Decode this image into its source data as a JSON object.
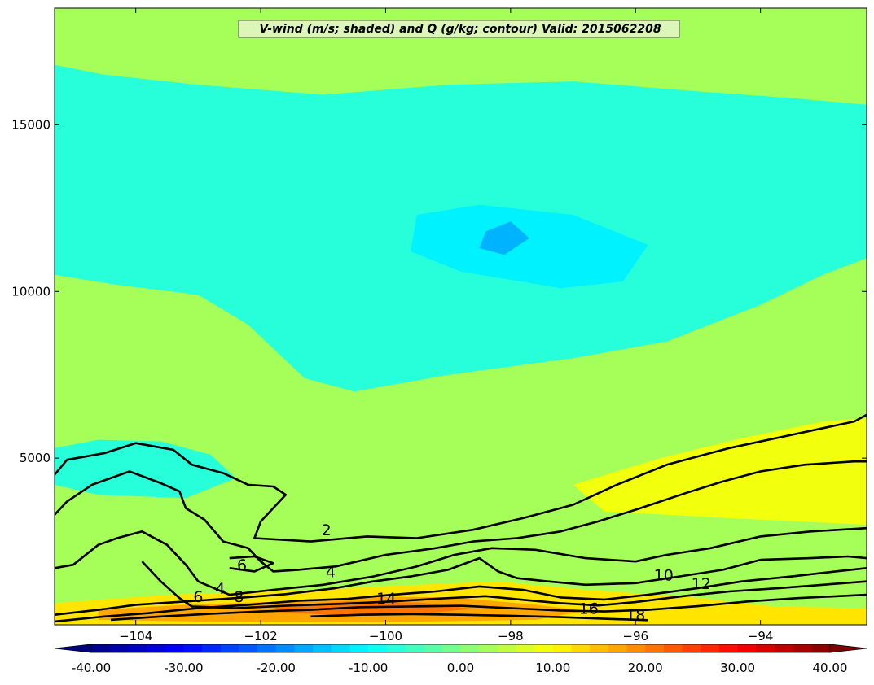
{
  "chart_data": {
    "type": "heatmap",
    "title": "V-wind (m/s; shaded) and Q (g/kg; contour) Valid: 2015062208",
    "xlabel": "",
    "ylabel": "",
    "xlim": [
      -105.3,
      -92.3
    ],
    "ylim": [
      0,
      18500
    ],
    "x_ticks": [
      -104,
      -102,
      -100,
      -98,
      -96,
      -94
    ],
    "x_tick_labels": [
      "−104",
      "−102",
      "−100",
      "−98",
      "−96",
      "−94"
    ],
    "y_ticks": [
      5000,
      10000,
      15000
    ],
    "y_tick_labels": [
      "5000",
      "10000",
      "15000"
    ],
    "colorbar": {
      "range": [
        -40,
        40
      ],
      "ticks": [
        -40,
        -30,
        -20,
        -10,
        0,
        10,
        20,
        30,
        40
      ],
      "tick_labels": [
        "-40.00",
        "-30.00",
        "-20.00",
        "-10.00",
        "0.00",
        "10.00",
        "20.00",
        "30.00",
        "40.00"
      ],
      "colormap": "jet",
      "extend": "both"
    },
    "contour_levels": [
      2,
      4,
      6,
      8,
      10,
      12,
      14,
      16,
      18
    ],
    "contour_labels": [
      {
        "text": "2",
        "x": -100.95,
        "y": 2850
      },
      {
        "text": "4",
        "x": -100.88,
        "y": 1600
      },
      {
        "text": "6",
        "x": -102.3,
        "y": 1800
      },
      {
        "text": "4",
        "x": -102.65,
        "y": 1100
      },
      {
        "text": "6",
        "x": -103.0,
        "y": 850
      },
      {
        "text": "8",
        "x": -102.35,
        "y": 850
      },
      {
        "text": "14",
        "x": -99.99,
        "y": 800
      },
      {
        "text": "10",
        "x": -95.55,
        "y": 1500
      },
      {
        "text": "12",
        "x": -94.95,
        "y": 1250
      },
      {
        "text": "16",
        "x": -96.75,
        "y": 500
      },
      {
        "text": "18",
        "x": -96.0,
        "y": 300
      }
    ],
    "shaded_field": {
      "background_value": 3,
      "regions": [
        {
          "value": -7,
          "points": [
            [
              -105.3,
              16800
            ],
            [
              -104.5,
              16500
            ],
            [
              -103,
              16200
            ],
            [
              -101,
              15900
            ],
            [
              -99,
              16200
            ],
            [
              -97,
              16300
            ],
            [
              -95,
              16000
            ],
            [
              -93.5,
              15800
            ],
            [
              -92.3,
              15600
            ],
            [
              -92.3,
              11000
            ],
            [
              -93,
              10500
            ],
            [
              -94,
              9600
            ],
            [
              -95.5,
              8500
            ],
            [
              -97,
              8000
            ],
            [
              -99,
              7500
            ],
            [
              -100.5,
              7000
            ],
            [
              -101.3,
              7400
            ],
            [
              -102.2,
              9000
            ],
            [
              -103,
              9900
            ],
            [
              -104.3,
              10200
            ],
            [
              -105.3,
              10500
            ]
          ]
        },
        {
          "value": -11,
          "points": [
            [
              -99.5,
              12300
            ],
            [
              -98.5,
              12600
            ],
            [
              -97,
              12300
            ],
            [
              -95.8,
              11400
            ],
            [
              -96.2,
              10300
            ],
            [
              -97.2,
              10100
            ],
            [
              -98.8,
              10600
            ],
            [
              -99.6,
              11200
            ]
          ]
        },
        {
          "value": -16,
          "points": [
            [
              -98.4,
              11800
            ],
            [
              -98.0,
              12100
            ],
            [
              -97.7,
              11600
            ],
            [
              -98.1,
              11100
            ],
            [
              -98.5,
              11300
            ]
          ]
        },
        {
          "value": -7,
          "points": [
            [
              -105.3,
              5300
            ],
            [
              -104.6,
              5550
            ],
            [
              -103.6,
              5500
            ],
            [
              -102.8,
              5100
            ],
            [
              -102.4,
              4400
            ],
            [
              -103.2,
              3800
            ],
            [
              -104.6,
              3900
            ],
            [
              -105.3,
              4200
            ]
          ]
        },
        {
          "value": 9,
          "points": [
            [
              -97,
              4200
            ],
            [
              -95.6,
              5000
            ],
            [
              -94.3,
              5600
            ],
            [
              -93,
              6100
            ],
            [
              -92.3,
              6200
            ],
            [
              -92.3,
              3000
            ],
            [
              -94.5,
              3200
            ],
            [
              -96.5,
              3400
            ]
          ]
        },
        {
          "value": 12,
          "points": [
            [
              -105.3,
              650
            ],
            [
              -103.5,
              900
            ],
            [
              -101.2,
              1050
            ],
            [
              -99.5,
              1200
            ],
            [
              -98.2,
              1300
            ],
            [
              -96.8,
              1050
            ],
            [
              -95.2,
              850
            ],
            [
              -93.8,
              550
            ],
            [
              -92.3,
              500
            ],
            [
              -92.3,
              0
            ],
            [
              -105.3,
              0
            ]
          ]
        },
        {
          "value": 17,
          "points": [
            [
              -104.6,
              450
            ],
            [
              -103.2,
              600
            ],
            [
              -101.6,
              700
            ],
            [
              -100.2,
              850
            ],
            [
              -98.9,
              820
            ],
            [
              -97.6,
              600
            ],
            [
              -96.8,
              420
            ],
            [
              -97.6,
              150
            ],
            [
              -100,
              80
            ],
            [
              -103,
              100
            ],
            [
              -104.6,
              150
            ]
          ]
        },
        {
          "value": 21,
          "points": [
            [
              -101.8,
              550
            ],
            [
              -100.6,
              700
            ],
            [
              -99.4,
              660
            ],
            [
              -98.6,
              480
            ],
            [
              -99.6,
              300
            ],
            [
              -100.9,
              300
            ],
            [
              -101.7,
              380
            ]
          ]
        }
      ]
    },
    "contours": [
      [
        [
          -105.3,
          4500
        ],
        [
          -105.1,
          4950
        ],
        [
          -104.5,
          5150
        ],
        [
          -104.0,
          5450
        ],
        [
          -103.7,
          5350
        ],
        [
          -103.4,
          5250
        ],
        [
          -103.1,
          4800
        ],
        [
          -102.6,
          4550
        ],
        [
          -102.2,
          4200
        ],
        [
          -101.8,
          4150
        ],
        [
          -101.6,
          3900
        ],
        [
          -102.0,
          3100
        ],
        [
          -102.1,
          2600
        ],
        [
          -101.2,
          2500
        ],
        [
          -100.3,
          2650
        ],
        [
          -99.5,
          2600
        ],
        [
          -98.6,
          2850
        ],
        [
          -97.8,
          3200
        ],
        [
          -97.0,
          3600
        ],
        [
          -96.3,
          4200
        ],
        [
          -95.5,
          4800
        ],
        [
          -94.5,
          5300
        ],
        [
          -93.5,
          5700
        ],
        [
          -92.5,
          6100
        ],
        [
          -92.3,
          6300
        ]
      ],
      [
        [
          -105.3,
          3300
        ],
        [
          -105.1,
          3700
        ],
        [
          -104.7,
          4200
        ],
        [
          -104.1,
          4600
        ],
        [
          -103.6,
          4250
        ],
        [
          -103.3,
          4000
        ],
        [
          -103.2,
          3500
        ],
        [
          -102.9,
          3150
        ],
        [
          -102.6,
          2500
        ],
        [
          -102.2,
          2300
        ],
        [
          -102.0,
          1900
        ],
        [
          -101.8,
          1600
        ],
        [
          -101.4,
          1650
        ],
        [
          -100.8,
          1750
        ],
        [
          -100.0,
          2100
        ],
        [
          -99.2,
          2300
        ],
        [
          -98.6,
          2500
        ],
        [
          -97.9,
          2600
        ],
        [
          -97.2,
          2800
        ],
        [
          -96.6,
          3100
        ],
        [
          -96.0,
          3450
        ],
        [
          -95.2,
          3950
        ],
        [
          -94.6,
          4300
        ],
        [
          -94.0,
          4600
        ],
        [
          -93.3,
          4800
        ],
        [
          -92.5,
          4900
        ],
        [
          -92.3,
          4900
        ]
      ],
      [
        [
          -105.3,
          1700
        ],
        [
          -105.0,
          1800
        ],
        [
          -104.6,
          2400
        ],
        [
          -104.3,
          2600
        ],
        [
          -103.9,
          2800
        ],
        [
          -103.5,
          2400
        ],
        [
          -103.2,
          1800
        ],
        [
          -103.0,
          1300
        ],
        [
          -102.5,
          900
        ],
        [
          -101.8,
          1050
        ],
        [
          -101.0,
          1200
        ],
        [
          -100.2,
          1450
        ],
        [
          -99.5,
          1750
        ],
        [
          -98.9,
          2100
        ],
        [
          -98.3,
          2300
        ],
        [
          -97.6,
          2250
        ],
        [
          -96.8,
          2000
        ],
        [
          -96.0,
          1900
        ],
        [
          -95.5,
          2100
        ],
        [
          -94.8,
          2300
        ],
        [
          -94.0,
          2650
        ],
        [
          -93.2,
          2800
        ],
        [
          -92.3,
          2900
        ]
      ],
      [
        [
          -105.3,
          300
        ],
        [
          -104.6,
          450
        ],
        [
          -104.0,
          600
        ],
        [
          -103.2,
          700
        ],
        [
          -102.4,
          800
        ],
        [
          -101.6,
          920
        ],
        [
          -100.8,
          1100
        ],
        [
          -100.2,
          1300
        ],
        [
          -99.6,
          1450
        ],
        [
          -99.0,
          1650
        ],
        [
          -98.5,
          2000
        ],
        [
          -98.2,
          1600
        ],
        [
          -97.9,
          1400
        ],
        [
          -97.4,
          1300
        ],
        [
          -96.8,
          1200
        ],
        [
          -96.0,
          1250
        ],
        [
          -95.3,
          1450
        ],
        [
          -94.6,
          1650
        ],
        [
          -94.0,
          1950
        ],
        [
          -93.2,
          2000
        ],
        [
          -92.6,
          2050
        ],
        [
          -92.3,
          2000
        ]
      ],
      [
        [
          -105.3,
          100
        ],
        [
          -104.5,
          250
        ],
        [
          -103.8,
          350
        ],
        [
          -103.0,
          500
        ],
        [
          -102.2,
          600
        ],
        [
          -101.4,
          720
        ],
        [
          -100.6,
          780
        ],
        [
          -99.9,
          900
        ],
        [
          -99.2,
          1000
        ],
        [
          -98.5,
          1150
        ],
        [
          -97.8,
          1050
        ],
        [
          -97.2,
          820
        ],
        [
          -96.5,
          760
        ],
        [
          -95.8,
          900
        ],
        [
          -95.0,
          1100
        ],
        [
          -94.3,
          1300
        ],
        [
          -93.5,
          1450
        ],
        [
          -92.8,
          1600
        ],
        [
          -92.3,
          1700
        ]
      ],
      [
        [
          -103.9,
          1900
        ],
        [
          -103.6,
          1300
        ],
        [
          -103.3,
          800
        ],
        [
          -103.1,
          550
        ],
        [
          -102.4,
          500
        ],
        [
          -101.5,
          580
        ],
        [
          -100.7,
          630
        ],
        [
          -99.9,
          700
        ],
        [
          -99.2,
          780
        ],
        [
          -98.4,
          860
        ],
        [
          -97.8,
          750
        ],
        [
          -97.2,
          650
        ],
        [
          -96.6,
          580
        ],
        [
          -96.0,
          680
        ],
        [
          -95.2,
          870
        ],
        [
          -94.5,
          1000
        ],
        [
          -93.7,
          1100
        ],
        [
          -93.0,
          1200
        ],
        [
          -92.3,
          1300
        ]
      ],
      [
        [
          -104.4,
          150
        ],
        [
          -103.6,
          250
        ],
        [
          -102.8,
          330
        ],
        [
          -102.0,
          400
        ],
        [
          -101.2,
          450
        ],
        [
          -100.4,
          530
        ],
        [
          -99.6,
          550
        ],
        [
          -98.8,
          570
        ],
        [
          -98.0,
          500
        ],
        [
          -97.2,
          430
        ],
        [
          -96.5,
          400
        ],
        [
          -95.8,
          450
        ],
        [
          -95.0,
          560
        ],
        [
          -94.2,
          700
        ],
        [
          -93.4,
          800
        ],
        [
          -92.3,
          900
        ]
      ],
      [
        [
          -101.2,
          250
        ],
        [
          -100.4,
          300
        ],
        [
          -99.6,
          320
        ],
        [
          -98.8,
          300
        ],
        [
          -98.0,
          270
        ],
        [
          -97.2,
          230
        ],
        [
          -96.5,
          180
        ],
        [
          -95.8,
          140
        ]
      ],
      [
        [
          -102.5,
          2000
        ],
        [
          -102.1,
          2050
        ],
        [
          -101.8,
          1850
        ],
        [
          -102.1,
          1600
        ],
        [
          -102.5,
          1700
        ]
      ]
    ]
  }
}
